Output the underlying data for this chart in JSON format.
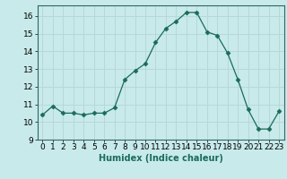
{
  "x": [
    0,
    1,
    2,
    3,
    4,
    5,
    6,
    7,
    8,
    9,
    10,
    11,
    12,
    13,
    14,
    15,
    16,
    17,
    18,
    19,
    20,
    21,
    22,
    23
  ],
  "y": [
    10.4,
    10.9,
    10.5,
    10.5,
    10.4,
    10.5,
    10.5,
    10.8,
    12.4,
    12.9,
    13.3,
    14.5,
    15.3,
    15.7,
    16.2,
    16.2,
    15.1,
    14.9,
    13.9,
    12.4,
    10.7,
    9.6,
    9.6,
    10.6
  ],
  "line_color": "#1a6b5a",
  "marker": "D",
  "marker_size": 2.5,
  "bg_color": "#c8eaea",
  "grid_color": "#b8d8d8",
  "xlabel": "Humidex (Indice chaleur)",
  "xlim": [
    -0.5,
    23.5
  ],
  "ylim": [
    9,
    16.6
  ],
  "yticks": [
    9,
    10,
    11,
    12,
    13,
    14,
    15,
    16
  ],
  "xticks": [
    0,
    1,
    2,
    3,
    4,
    5,
    6,
    7,
    8,
    9,
    10,
    11,
    12,
    13,
    14,
    15,
    16,
    17,
    18,
    19,
    20,
    21,
    22,
    23
  ],
  "label_fontsize": 7,
  "tick_fontsize": 6.5,
  "spine_color": "#336666"
}
